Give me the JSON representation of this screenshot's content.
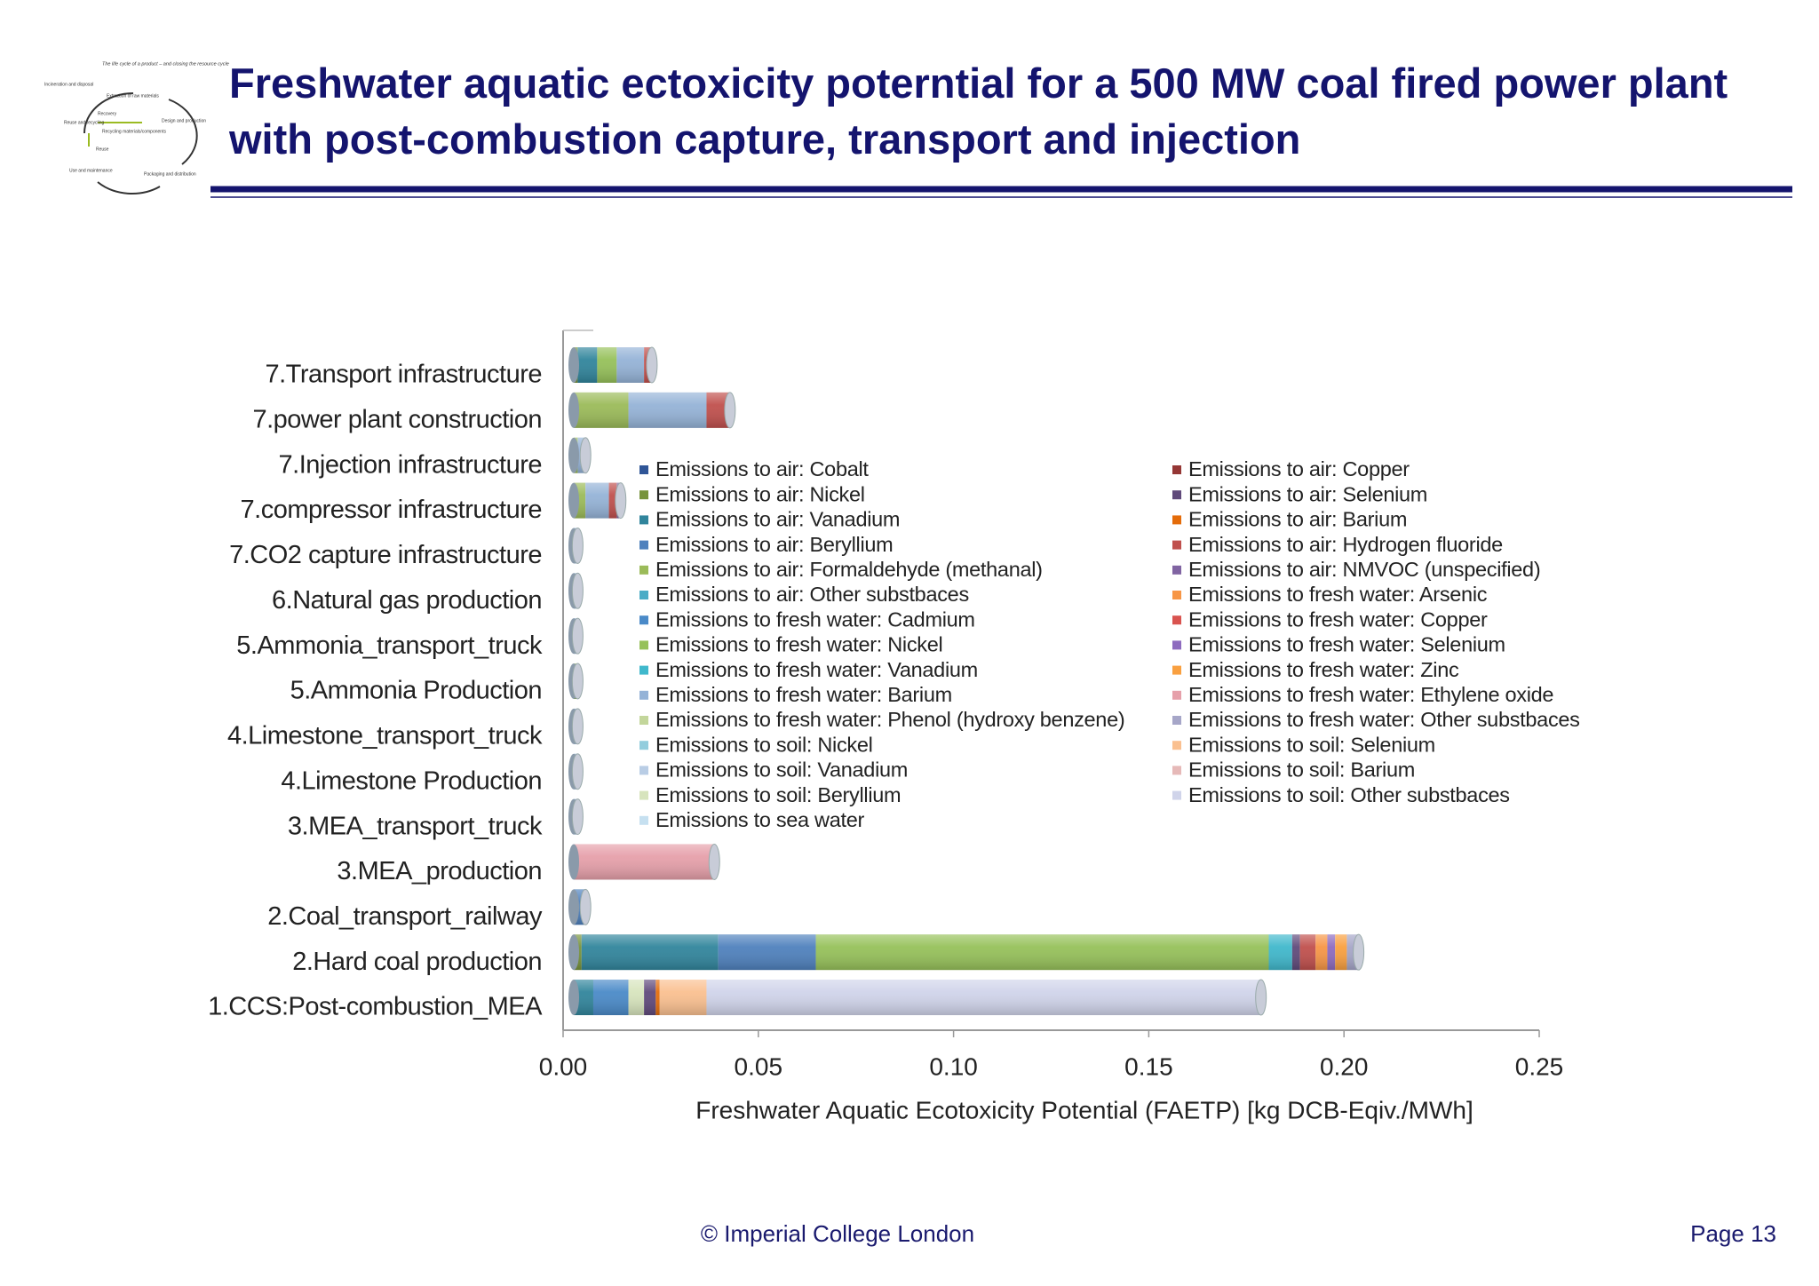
{
  "header": {
    "title": "Freshwater aquatic ectoxicity poterntial for a 500 MW coal fired power plant with post-combustion capture, transport and injection"
  },
  "logo": {
    "caption": "The life cycle of a product – and closing the resource cycle",
    "labels": [
      "Incineration and disposal",
      "Extraction of raw materials",
      "Recovery",
      "Reuse and recycling",
      "Design and production",
      "Recycling materials/components",
      "Reuse",
      "Use and maintenance",
      "Packaging and distribution"
    ]
  },
  "footer": {
    "copyright": "© Imperial College London",
    "page": "Page 13"
  },
  "chart_data": {
    "type": "bar",
    "orientation": "horizontal",
    "stacked": true,
    "x_label": "Freshwater Aquatic Ecotoxicity Potential (FAETP) [kg DCB-Eqiv./MWh]",
    "categories": [
      "7.Transport infrastructure",
      "7.power plant construction",
      "7.Injection infrastructure",
      "7.compressor infrastructure",
      "7.CO2 capture infrastructure",
      "6.Natural gas production",
      "5.Ammonia_transport_truck",
      "5.Ammonia Production",
      "4.Limestone_transport_truck",
      "4.Limestone Production",
      "3.MEA_transport_truck",
      "3.MEA_production",
      "2.Coal_transport_railway",
      "2.Hard coal production",
      "1.CCS:Post-combustion_MEA"
    ],
    "xlim": [
      0,
      0.25
    ],
    "xticks": [
      {
        "value": 0,
        "label": "0.00"
      },
      {
        "value": 0.05,
        "label": "0.05"
      },
      {
        "value": 0.1,
        "label": "0.10"
      },
      {
        "value": 0.15,
        "label": "0.15"
      },
      {
        "value": 0.2,
        "label": "0.20"
      },
      {
        "value": 0.25,
        "label": "0.25"
      }
    ],
    "series": [
      {
        "name": "Emissions to air: Cobalt",
        "color": "#2f5597",
        "values": [
          0,
          0,
          0,
          0,
          0,
          0,
          0,
          0,
          0,
          0,
          0,
          0,
          0,
          0,
          0
        ]
      },
      {
        "name": "Emissions to air: Nickel",
        "color": "#77933c",
        "values": [
          0.001,
          0,
          0,
          0,
          0,
          0,
          0,
          0,
          0,
          0,
          0,
          0,
          0,
          0.002,
          0
        ]
      },
      {
        "name": "Emissions to air: Vanadium",
        "color": "#31859c",
        "values": [
          0.005,
          0,
          0,
          0,
          0,
          0,
          0,
          0,
          0,
          0,
          0,
          0,
          0,
          0.035,
          0.005
        ]
      },
      {
        "name": "Emissions to air: Beryllium",
        "color": "#4f81bd",
        "values": [
          0,
          0,
          0,
          0,
          0,
          0,
          0,
          0,
          0,
          0,
          0,
          0,
          0.003,
          0.025,
          0
        ]
      },
      {
        "name": "Emissions to air: Formaldehyde (methanal)",
        "color": "#9bbb59",
        "values": [
          0,
          0.014,
          0.001,
          0.003,
          0,
          0,
          0,
          0.001,
          0,
          0,
          0,
          0,
          0,
          0,
          0
        ]
      },
      {
        "name": "Emissions to air: Other substbaces",
        "color": "#4bacc6",
        "values": [
          0,
          0,
          0,
          0,
          0,
          0,
          0,
          0,
          0,
          0,
          0,
          0,
          0,
          0,
          0
        ]
      },
      {
        "name": "Emissions to fresh water: Cadmium",
        "color": "#4a8ac8",
        "values": [
          0,
          0,
          0,
          0,
          0,
          0,
          0,
          0,
          0,
          0,
          0,
          0,
          0,
          0,
          0.009
        ]
      },
      {
        "name": "Emissions to fresh water: Nickel",
        "color": "#96c15a",
        "values": [
          0.005,
          0,
          0,
          0,
          0,
          0,
          0,
          0,
          0,
          0,
          0,
          0,
          0,
          0.116,
          0
        ]
      },
      {
        "name": "Emissions to fresh water: Vanadium",
        "color": "#40b8cc",
        "values": [
          0,
          0,
          0,
          0,
          0,
          0,
          0,
          0,
          0,
          0,
          0,
          0,
          0,
          0.006,
          0
        ]
      },
      {
        "name": "Emissions to fresh water: Barium",
        "color": "#95b3d7",
        "values": [
          0.007,
          0.02,
          0.002,
          0.006,
          0.001,
          0.001,
          0.001,
          0,
          0.001,
          0.001,
          0.001,
          0,
          0,
          0,
          0
        ]
      },
      {
        "name": "Emissions to fresh water: Phenol (hydroxy benzene)",
        "color": "#c3d69b",
        "values": [
          0,
          0,
          0,
          0,
          0,
          0,
          0,
          0,
          0,
          0,
          0,
          0,
          0,
          0,
          0
        ]
      },
      {
        "name": "Emissions to soil: Nickel",
        "color": "#93cddd",
        "values": [
          0,
          0,
          0,
          0,
          0,
          0,
          0,
          0,
          0,
          0,
          0,
          0,
          0,
          0,
          0
        ]
      },
      {
        "name": "Emissions to soil: Vanadium",
        "color": "#b9cde5",
        "values": [
          0,
          0,
          0,
          0,
          0,
          0,
          0,
          0,
          0,
          0,
          0,
          0,
          0,
          0,
          0
        ]
      },
      {
        "name": "Emissions to soil: Beryllium",
        "color": "#d7e4bd",
        "values": [
          0,
          0,
          0,
          0,
          0,
          0,
          0,
          0,
          0,
          0,
          0,
          0,
          0,
          0,
          0.004
        ]
      },
      {
        "name": "Emissions to sea water",
        "color": "#c6e0f0",
        "values": [
          0,
          0,
          0,
          0,
          0,
          0,
          0,
          0,
          0,
          0,
          0,
          0,
          0,
          0,
          0
        ]
      },
      {
        "name": "Emissions to air: Copper",
        "color": "#953735",
        "values": [
          0,
          0,
          0,
          0,
          0,
          0,
          0,
          0,
          0,
          0,
          0,
          0,
          0,
          0,
          0
        ]
      },
      {
        "name": "Emissions to air: Selenium",
        "color": "#604a7b",
        "values": [
          0,
          0,
          0,
          0,
          0,
          0,
          0,
          0,
          0,
          0,
          0,
          0,
          0,
          0.002,
          0.003
        ]
      },
      {
        "name": "Emissions to air: Barium",
        "color": "#e46c0a",
        "values": [
          0,
          0,
          0,
          0,
          0,
          0,
          0,
          0,
          0,
          0,
          0,
          0,
          0,
          0,
          0.001
        ]
      },
      {
        "name": "Emissions to air: Hydrogen fluoride",
        "color": "#c0504d",
        "values": [
          0.002,
          0.006,
          0,
          0.002,
          0,
          0,
          0,
          0,
          0,
          0,
          0,
          0,
          0,
          0.004,
          0
        ]
      },
      {
        "name": "Emissions to air: NMVOC (unspecified)",
        "color": "#8064a2",
        "values": [
          0,
          0,
          0,
          0.001,
          0,
          0,
          0,
          0,
          0,
          0,
          0,
          0,
          0,
          0,
          0
        ]
      },
      {
        "name": "Emissions to fresh water: Arsenic",
        "color": "#f79646",
        "values": [
          0,
          0,
          0,
          0,
          0,
          0,
          0,
          0,
          0,
          0,
          0,
          0,
          0,
          0.003,
          0
        ]
      },
      {
        "name": "Emissions to fresh water: Copper",
        "color": "#d9534f",
        "values": [
          0,
          0,
          0,
          0,
          0,
          0,
          0,
          0,
          0,
          0,
          0,
          0,
          0,
          0,
          0
        ]
      },
      {
        "name": "Emissions to fresh water: Selenium",
        "color": "#8e6bbf",
        "values": [
          0,
          0,
          0,
          0,
          0,
          0,
          0,
          0,
          0,
          0,
          0,
          0,
          0,
          0.002,
          0
        ]
      },
      {
        "name": "Emissions to fresh water: Zinc",
        "color": "#f9a040",
        "values": [
          0,
          0,
          0,
          0,
          0,
          0,
          0,
          0,
          0,
          0,
          0,
          0,
          0,
          0.003,
          0
        ]
      },
      {
        "name": "Emissions to fresh water: Ethylene oxide",
        "color": "#e6a0aa",
        "values": [
          0,
          0,
          0,
          0,
          0,
          0,
          0,
          0,
          0,
          0,
          0,
          0.036,
          0,
          0,
          0
        ]
      },
      {
        "name": "Emissions to fresh water: Other substbaces",
        "color": "#a6a6c8",
        "values": [
          0,
          0,
          0,
          0,
          0,
          0,
          0,
          0,
          0,
          0,
          0,
          0,
          0,
          0.003,
          0
        ]
      },
      {
        "name": "Emissions to soil: Selenium",
        "color": "#fac090",
        "values": [
          0,
          0,
          0,
          0,
          0,
          0,
          0,
          0,
          0,
          0,
          0,
          0,
          0,
          0,
          0.012
        ]
      },
      {
        "name": "Emissions to soil: Barium",
        "color": "#e6b9b8",
        "values": [
          0,
          0,
          0,
          0,
          0,
          0,
          0,
          0,
          0,
          0,
          0,
          0,
          0,
          0,
          0
        ]
      },
      {
        "name": "Emissions to soil: Other substbaces",
        "color": "#d0d4ea",
        "values": [
          0,
          0,
          0,
          0,
          0,
          0,
          0,
          0,
          0,
          0,
          0,
          0,
          0,
          0,
          0.142
        ]
      }
    ]
  }
}
